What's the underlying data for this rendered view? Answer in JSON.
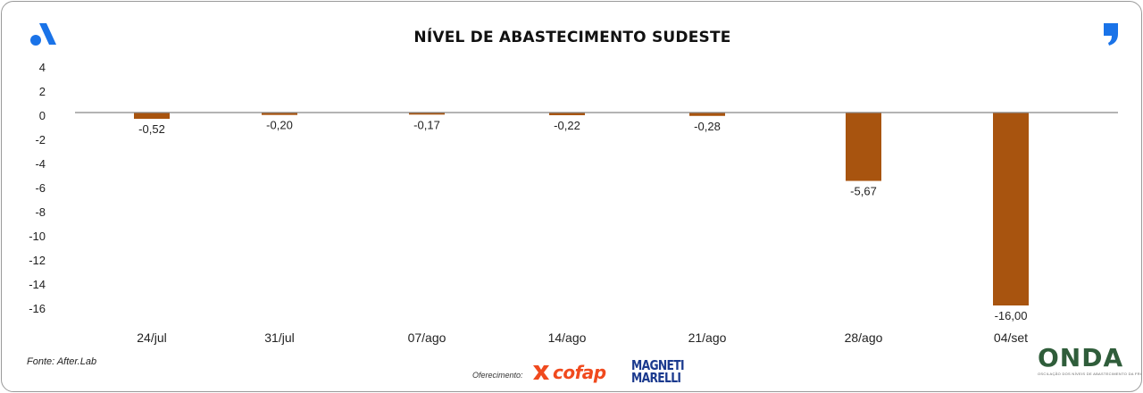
{
  "title": "NÍVEL DE ABASTECIMENTO SUDESTE",
  "footer": {
    "source": "Fonte: After.Lab",
    "sponsor_label": "Oferecimento:",
    "sponsors": [
      "cofap",
      "MAGNETI",
      "MARELLI"
    ]
  },
  "onda": {
    "logo_text": "ONDA",
    "tagline": "OSCILAÇÃO DOS NÍVEIS DE ABASTECIMENTO DA FROTA"
  },
  "icons": {
    "brand_left": "a-logo-icon",
    "brand_right": "quote-mark-icon",
    "cofap": "cofap-x-icon"
  },
  "colors": {
    "bar": "#a8540f",
    "brand_blue": "#1a73e8",
    "baseline": "#888888",
    "onda_green": "#2f5d3a"
  },
  "chart_data": {
    "type": "bar",
    "title": "NÍVEL DE ABASTECIMENTO SUDESTE",
    "categories": [
      "24/jul",
      "31/jul",
      "07/ago",
      "14/ago",
      "21/ago",
      "28/ago",
      "04/set"
    ],
    "values": [
      -0.52,
      -0.2,
      -0.17,
      -0.22,
      -0.28,
      -5.67,
      -16.0
    ],
    "data_labels": [
      "-0,52",
      "-0,20",
      "-0,17",
      "-0,22",
      "-0,28",
      "-5,67",
      "-16,00"
    ],
    "y_ticks": [
      4,
      2,
      0,
      -2,
      -4,
      -6,
      -8,
      -10,
      -12,
      -14,
      -16
    ],
    "y_tick_labels": [
      "4",
      "2",
      "0",
      "-2",
      "-4",
      "-6",
      "-8",
      "-10",
      "-12",
      "-14",
      "-16"
    ],
    "ylim": [
      -16.5,
      4
    ],
    "grid": false,
    "legend": "none",
    "xlabel": "",
    "ylabel": ""
  }
}
